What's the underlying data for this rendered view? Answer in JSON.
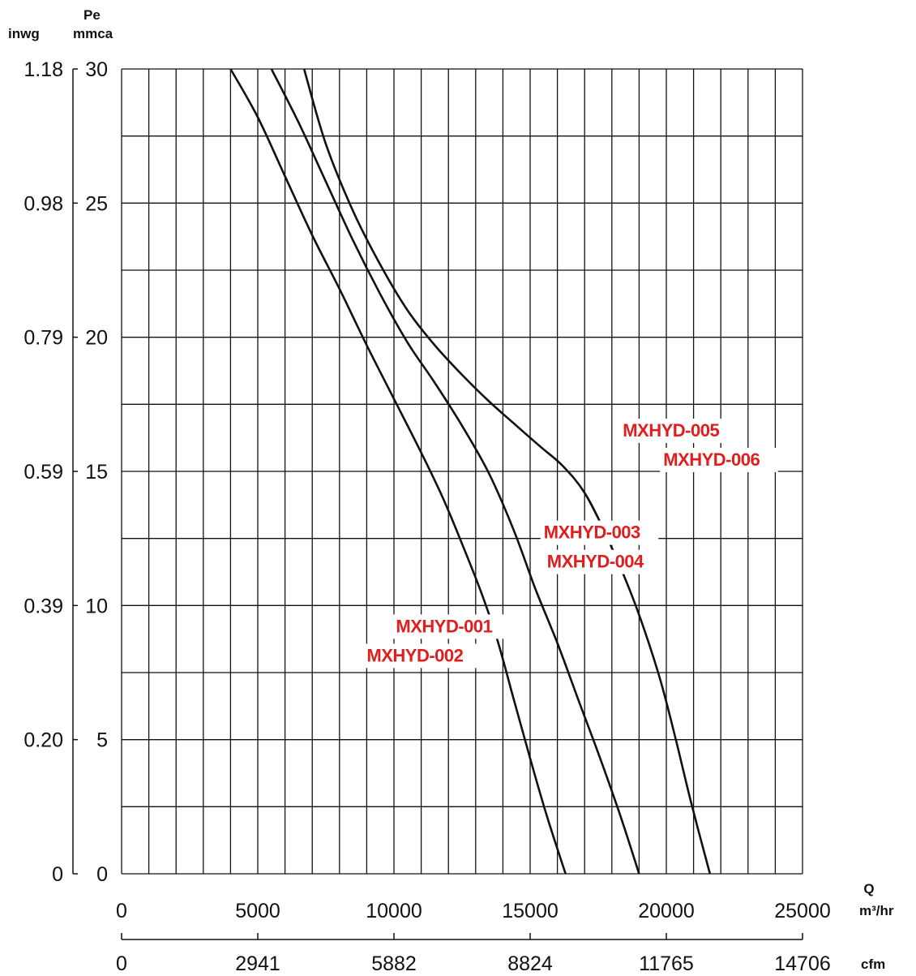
{
  "chart_data": {
    "type": "line",
    "title": "",
    "x_axis": {
      "label": "Q",
      "unit": "m³/hr",
      "range": [
        0,
        25000
      ],
      "ticks": [
        0,
        5000,
        10000,
        15000,
        20000,
        25000
      ],
      "tick_labels": [
        "0",
        "5000",
        "10000",
        "15000",
        "20000",
        "25000"
      ]
    },
    "x_axis_secondary": {
      "unit": "cfm",
      "tick_labels": [
        "0",
        "2941",
        "5882",
        "8824",
        "11765",
        "14706"
      ]
    },
    "y_axis": {
      "label": "Pe",
      "unit": "mmca",
      "range": [
        0,
        30
      ],
      "ticks": [
        0,
        5,
        10,
        15,
        20,
        25,
        30
      ],
      "tick_labels": [
        "0",
        "5",
        "10",
        "15",
        "20",
        "25",
        "30"
      ]
    },
    "y_axis_secondary": {
      "unit": "inwg",
      "tick_labels": [
        "0",
        "0.20",
        "0.39",
        "0.59",
        "0.79",
        "0.98",
        "1.18"
      ]
    },
    "grid": true,
    "series": [
      {
        "name": "MXHYD-001 / MXHYD-002",
        "label_lines": [
          "MXHYD-001",
          "MXHYD-002"
        ],
        "label_at": {
          "x": 9000,
          "y": 9.0
        },
        "x": [
          4000,
          5000,
          6000,
          7000,
          8000,
          9000,
          10000,
          11000,
          11800,
          12500,
          13200,
          13800,
          14400,
          15000,
          15600,
          16300
        ],
        "y": [
          30,
          28.2,
          26.0,
          23.8,
          21.8,
          19.7,
          17.7,
          15.7,
          14.0,
          12.3,
          10.5,
          8.7,
          6.5,
          4.3,
          2.2,
          0
        ]
      },
      {
        "name": "MXHYD-003 / MXHYD-004",
        "label_lines": [
          "MXHYD-003",
          "MXHYD-004"
        ],
        "label_at": {
          "x": 15500,
          "y": 12.5
        },
        "x": [
          5500,
          6500,
          7500,
          8500,
          9500,
          10500,
          11500,
          12500,
          13500,
          14400,
          15200,
          16000,
          16800,
          17500,
          18300,
          19000
        ],
        "y": [
          30,
          28.0,
          25.8,
          23.6,
          21.6,
          19.8,
          18.3,
          16.7,
          14.9,
          12.8,
          10.6,
          8.6,
          6.4,
          4.5,
          2.2,
          0
        ]
      },
      {
        "name": "MXHYD-005 / MXHYD-006",
        "label_lines": [
          "MXHYD-005",
          "MXHYD-006"
        ],
        "label_at": {
          "x": 18400,
          "y": 16.3
        },
        "x": [
          6700,
          7500,
          8500,
          9500,
          10500,
          11500,
          12500,
          13500,
          14500,
          15400,
          16200,
          17000,
          17800,
          18800,
          19700,
          20300,
          20900,
          21600
        ],
        "y": [
          30,
          27.2,
          24.7,
          22.7,
          21.0,
          19.7,
          18.6,
          17.6,
          16.7,
          15.9,
          15.2,
          14.2,
          12.6,
          10.2,
          7.5,
          5.2,
          2.7,
          0
        ]
      }
    ]
  }
}
